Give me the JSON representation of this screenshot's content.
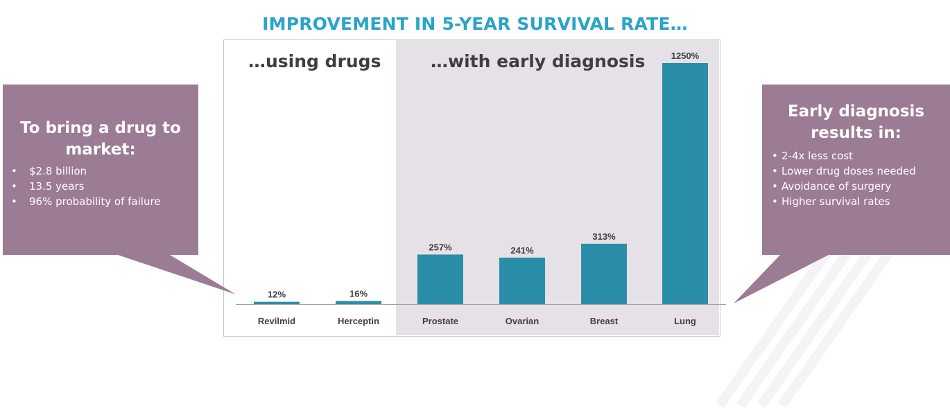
{
  "title": "IMPROVEMENT IN 5-YEAR SURVIVAL RATE…",
  "sections": {
    "drugs": "…using drugs",
    "diagnosis": "…with early diagnosis"
  },
  "colors": {
    "bar": "#2a8ea8",
    "callout": "#9c7b94",
    "title": "#2aa4c8",
    "shade": "#e6e1e6"
  },
  "left_callout": {
    "title": "To bring a drug to market:",
    "bullet": "•",
    "items": [
      "$2.8 billion",
      "13.5 years",
      "96% probability of failure"
    ]
  },
  "right_callout": {
    "title": "Early diagnosis results in:",
    "bullet": "•",
    "items": [
      "2-4x less cost",
      "Lower drug doses needed",
      "Avoidance of surgery",
      "Higher survival rates"
    ]
  },
  "chart_data": {
    "type": "bar",
    "title": "IMPROVEMENT IN 5-YEAR SURVIVAL RATE…",
    "categories": [
      "Revilmid",
      "Herceptin",
      "Prostate",
      "Ovarian",
      "Breast",
      "Lung"
    ],
    "values": [
      12,
      16,
      257,
      241,
      313,
      1250
    ],
    "value_labels": [
      "12%",
      "16%",
      "257%",
      "241%",
      "313%",
      "1250%"
    ],
    "groups": [
      {
        "name": "…using drugs",
        "categories": [
          "Revilmid",
          "Herceptin"
        ]
      },
      {
        "name": "…with early diagnosis",
        "categories": [
          "Prostate",
          "Ovarian",
          "Breast",
          "Lung"
        ]
      }
    ],
    "xlabel": "",
    "ylabel": "",
    "grid": false,
    "legend": "none"
  }
}
